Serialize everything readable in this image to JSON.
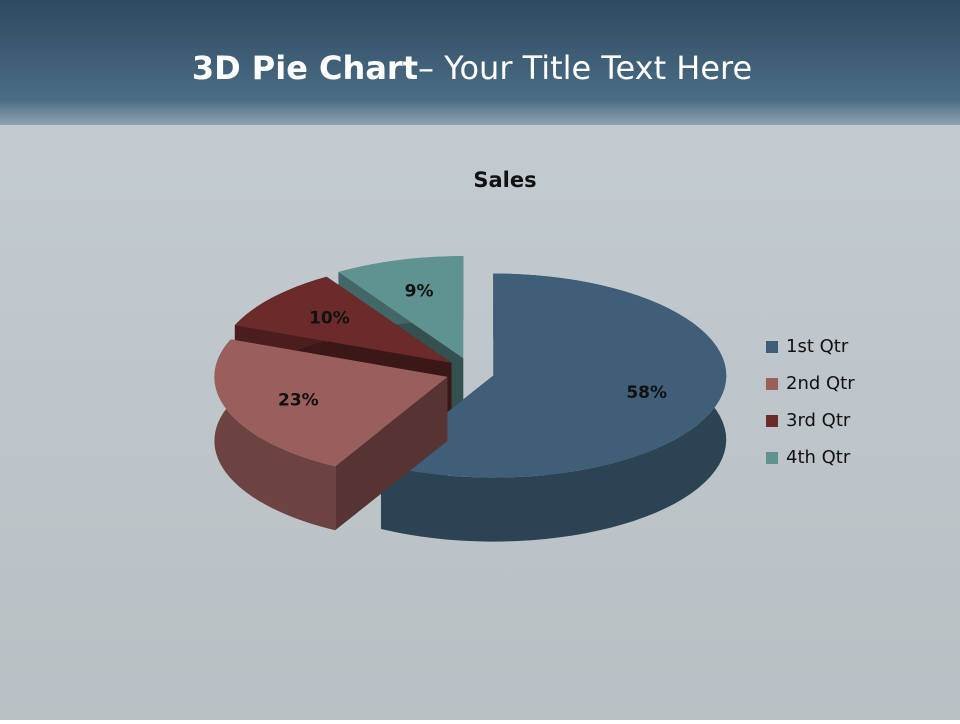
{
  "slide": {
    "title_bold": "3D Pie Chart",
    "title_rest": "– Your Title Text Here"
  },
  "chart_data": {
    "type": "pie",
    "title": "Sales",
    "categories": [
      "1st Qtr",
      "2nd Qtr",
      "3rd Qtr",
      "4th Qtr"
    ],
    "values": [
      58,
      23,
      10,
      9
    ],
    "value_labels": [
      "58%",
      "23%",
      "10%",
      "9%"
    ],
    "colors": [
      "#3f5f78",
      "#9a5f5d",
      "#6b2b2b",
      "#5e9391"
    ],
    "legend": "right"
  }
}
